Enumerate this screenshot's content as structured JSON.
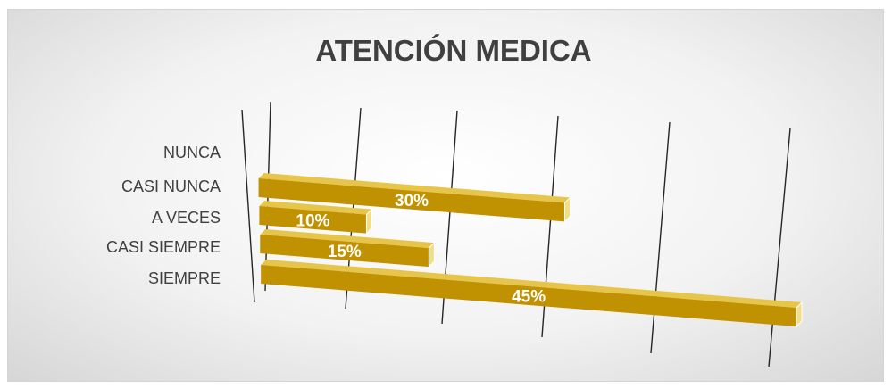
{
  "chart_data": {
    "type": "bar",
    "orientation": "horizontal",
    "style": "3d-perspective",
    "title": "ATENCIÓN MEDICA",
    "categories": [
      "NUNCA",
      "CASI NUNCA",
      "A VECES",
      "CASI SIEMPRE",
      "SIEMPRE"
    ],
    "values": [
      null,
      30,
      10,
      15,
      45
    ],
    "data_labels": [
      "",
      "30%",
      "10%",
      "15%",
      "45%"
    ],
    "xlim": [
      0,
      50
    ],
    "grid": true,
    "legend": "none",
    "bar_color": "#C09100",
    "bar_top_color": "#E6C54A",
    "bar_end_color": "#F3DD88",
    "label_color": "#404040"
  }
}
